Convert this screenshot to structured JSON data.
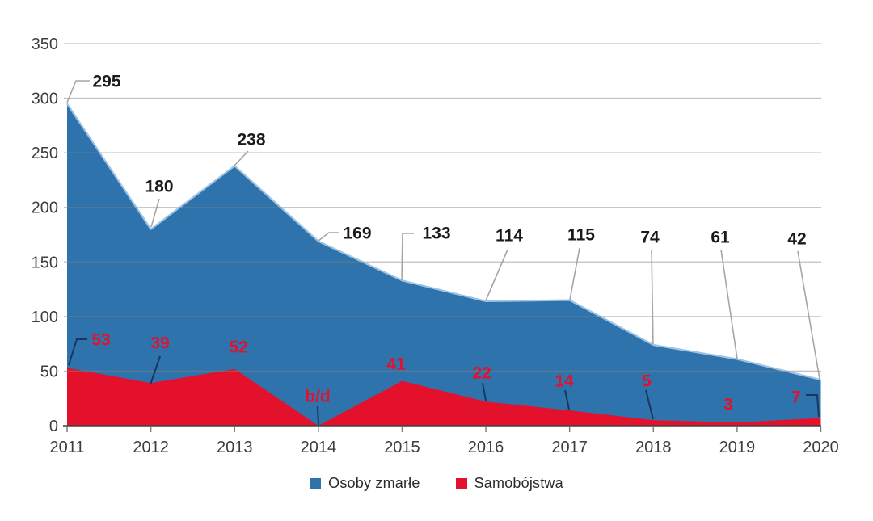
{
  "chart_data": {
    "type": "area",
    "title": "",
    "xlabel": "",
    "ylabel": "",
    "categories": [
      "2011",
      "2012",
      "2013",
      "2014",
      "2015",
      "2016",
      "2017",
      "2018",
      "2019",
      "2020"
    ],
    "series": [
      {
        "name": "Osoby zmarłe",
        "color": "#2F73AC",
        "edge_color": "#9DC3E6",
        "values": [
          295,
          180,
          238,
          169,
          133,
          114,
          115,
          74,
          61,
          42
        ],
        "labels": [
          "295",
          "180",
          "238",
          "169",
          "133",
          "114",
          "115",
          "74",
          "61",
          "42"
        ],
        "label_color": "#1a1a1a",
        "leader_color": "#A6A6A6"
      },
      {
        "name": "Samobójstwa",
        "color": "#E3112B",
        "values": [
          53,
          39,
          52,
          null,
          41,
          22,
          14,
          5,
          3,
          7
        ],
        "labels": [
          "53",
          "39",
          "52",
          "b/d",
          "41",
          "22",
          "14",
          "5",
          "3",
          "7"
        ],
        "label_color": "#E3112B",
        "leader_color": "#17375E",
        "no_data_label": "b/d",
        "no_data_category": "2014"
      }
    ],
    "ylim": [
      0,
      350
    ],
    "ytick_step": 50,
    "yticks": [
      "0",
      "50",
      "100",
      "150",
      "200",
      "250",
      "300",
      "350"
    ],
    "grid": "horizontal",
    "gridline_color": "#A6A6A6",
    "axis_line_color": "#404040",
    "axis_label_color": "#3d3d3d",
    "legend_position": "bottom"
  },
  "legend": {
    "items": [
      {
        "label": "Osoby zmarłe",
        "color": "#2F73AC"
      },
      {
        "label": "Samobójstwa",
        "color": "#E3112B"
      }
    ]
  }
}
